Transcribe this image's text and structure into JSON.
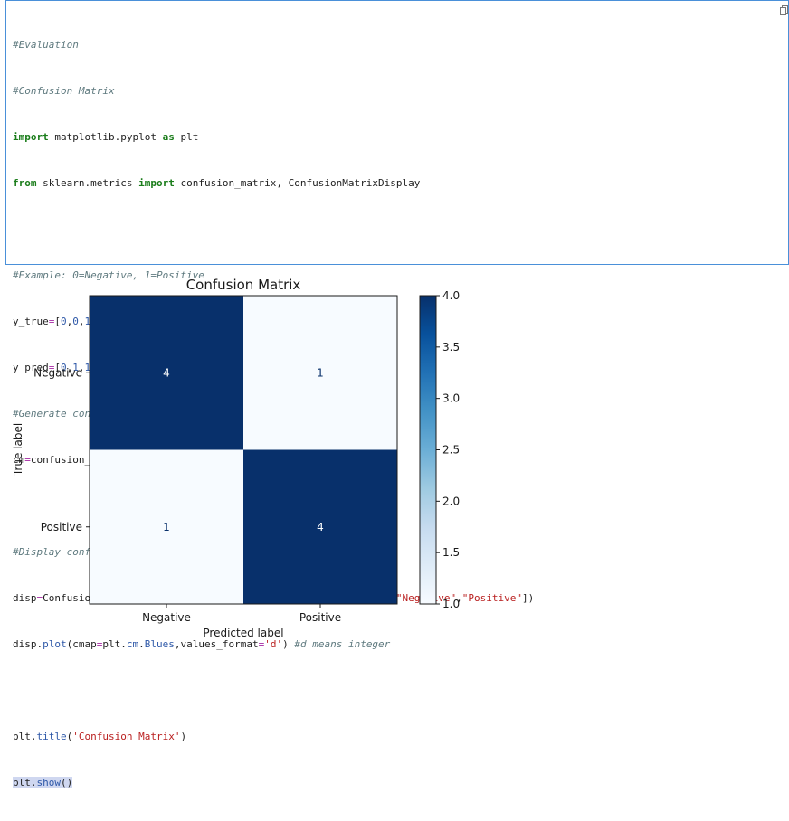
{
  "code": {
    "lines": [
      "#Evaluation",
      "#Confusion Matrix",
      "import matplotlib.pyplot as plt",
      "from sklearn.metrics import confusion_matrix, ConfusionMatrixDisplay",
      "",
      "#Example: 0=Negative, 1=Positive",
      "y_true=[0,0,1,1,0,1,0,1,1,0]",
      "y_pred=[0,1,1,1,0,0,0,1,1,0]",
      "#Generate confusion matrix",
      "cm=confusion_matrix(y_true,y_pred)",
      "",
      "#Display confusion matrix with labels",
      "disp=ConfusionMatrixDisplay(confusion_matrix=cm,display_labels=[\"Negative\",\"Positive\"])",
      "disp.plot(cmap=plt.cm.Blues,values_format='d') #d means integer",
      "",
      "plt.title('Confusion Matrix')",
      "plt.show()"
    ],
    "copy_icon": "copy-icon"
  },
  "colors": {
    "cell_border": "#4a90d9",
    "dark_blue": "#08306b",
    "light_blue": "#f7fbff"
  },
  "chart_data": {
    "type": "heatmap",
    "title": "Confusion Matrix",
    "xlabel": "Predicted label",
    "ylabel": "True label",
    "x_categories": [
      "Negative",
      "Positive"
    ],
    "y_categories": [
      "Negative",
      "Positive"
    ],
    "values": [
      [
        4,
        1
      ],
      [
        1,
        4
      ]
    ],
    "cmap": "Blues",
    "colorbar": {
      "range": [
        1.0,
        4.0
      ],
      "ticks": [
        1.0,
        1.5,
        2.0,
        2.5,
        3.0,
        3.5,
        4.0
      ],
      "tick_labels": [
        "1.0",
        "1.5",
        "2.0",
        "2.5",
        "3.0",
        "3.5",
        "4.0"
      ]
    }
  }
}
